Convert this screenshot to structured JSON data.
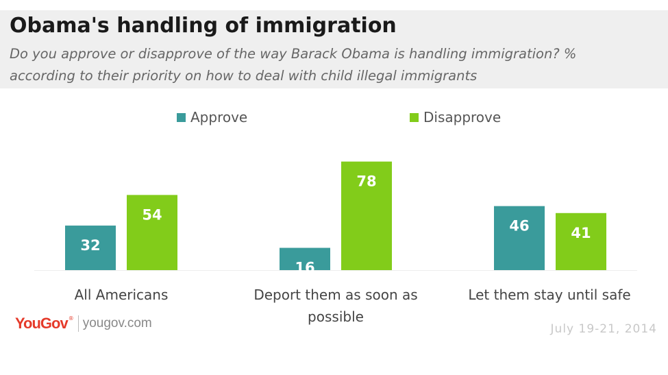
{
  "header": {
    "title": "Obama's handling of immigration",
    "subtitle": "Do you approve or disapprove of the way Barack Obama is handling immigration? % according to their priority on how to deal with child illegal immigrants"
  },
  "footer": {
    "brand": "YouGov",
    "registered": "®",
    "url": "yougov.com",
    "date": "July 19-21, 2014"
  },
  "colors": {
    "approve": "#3a9b9b",
    "disapprove": "#82cc1a",
    "background": "#ffffff",
    "header_bg": "#efefef"
  },
  "chart_data": {
    "type": "bar",
    "categories": [
      "All Americans",
      "Deport them as soon as possible",
      "Let them stay until safe"
    ],
    "series": [
      {
        "name": "Approve",
        "values": [
          32,
          16,
          46
        ],
        "color": "#3a9b9b"
      },
      {
        "name": "Disapprove",
        "values": [
          54,
          78,
          41
        ],
        "color": "#82cc1a"
      }
    ],
    "title": "Obama's handling of immigration",
    "subtitle": "Do you approve or disapprove of the way Barack Obama is handling immigration? % according to their priority on how to deal with child illegal immigrants",
    "xlabel": "",
    "ylabel": "",
    "ylim": [
      0,
      100
    ],
    "grid": false,
    "legend_position": "top-center",
    "data_labels": true
  }
}
